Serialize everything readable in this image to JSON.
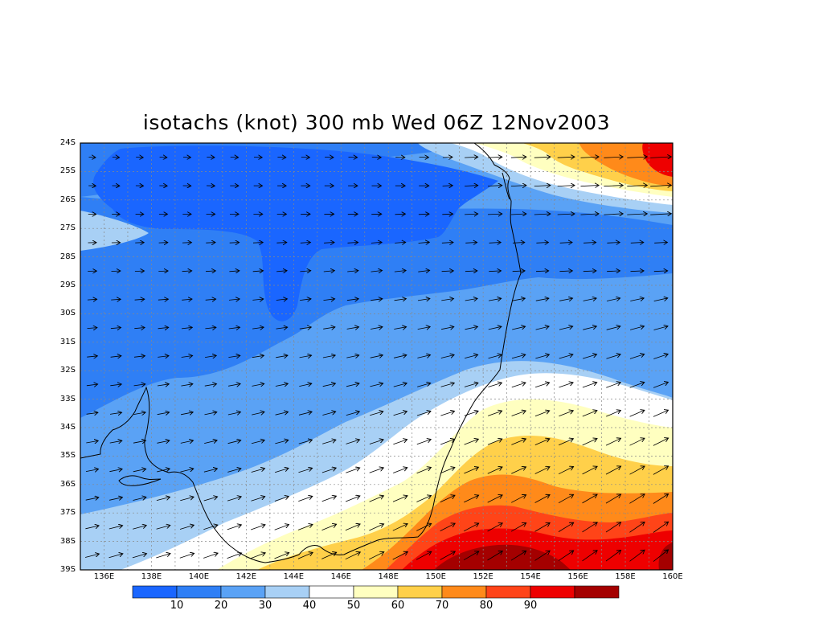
{
  "title": "isotachs (knot) 300 mb Wed 06Z 12Nov2003",
  "map": {
    "lon_range": [
      135,
      160
    ],
    "lat_range": [
      -39,
      -24
    ],
    "lat_labels": [
      "24S",
      "25S",
      "26S",
      "27S",
      "28S",
      "29S",
      "30S",
      "31S",
      "32S",
      "33S",
      "34S",
      "35S",
      "36S",
      "37S",
      "38S",
      "39S"
    ],
    "lon_labels": [
      "136E",
      "138E",
      "140E",
      "142E",
      "144E",
      "146E",
      "148E",
      "150E",
      "152E",
      "154E",
      "156E",
      "158E",
      "160E"
    ]
  },
  "colorbar": {
    "colors": [
      "#1a66ff",
      "#2f7ff5",
      "#5aa2f5",
      "#a8d0f5",
      "#ffffff",
      "#ffffc0",
      "#ffd04a",
      "#ff8a1a",
      "#ff4418",
      "#ee0000",
      "#a40000"
    ],
    "labels": [
      "10",
      "20",
      "30",
      "40",
      "50",
      "60",
      "70",
      "80",
      "90"
    ]
  }
}
